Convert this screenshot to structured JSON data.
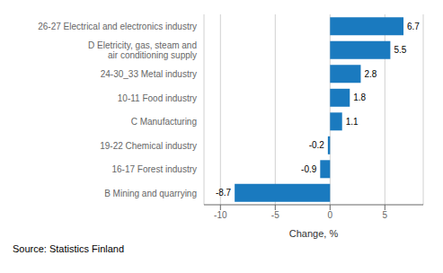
{
  "chart_data": {
    "type": "bar",
    "orientation": "horizontal",
    "categories": [
      "B Mining and quarrying",
      "16-17 Forest industry",
      "19-22 Chemical industry",
      "C Manufacturing",
      "10-11 Food industry",
      "24-30_33 Metal industry",
      "D Eletricity, gas, steam and\nair conditioning supply",
      "26-27 Electrical and electronics industry"
    ],
    "values": [
      -8.7,
      -0.9,
      -0.2,
      1.1,
      1.8,
      2.8,
      5.5,
      6.7
    ],
    "color": "#1a7abf",
    "xlabel": "Change, %",
    "xlim": [
      -11.5,
      8.5
    ],
    "xticks": [
      -10,
      -5,
      0,
      5
    ],
    "grid": true,
    "data_labels": true,
    "source": "Source: Statistics Finland"
  }
}
